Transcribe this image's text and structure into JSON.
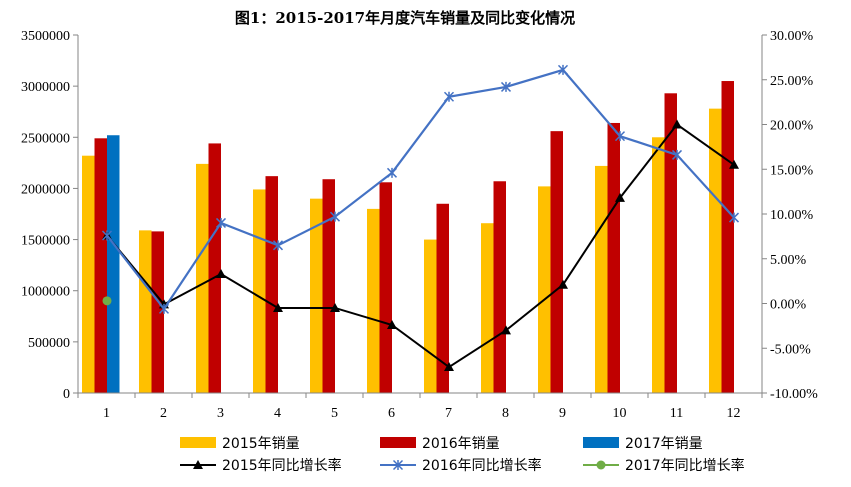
{
  "chart_data": {
    "type": "bar",
    "title": "图1：2015-2017年月度汽车销量及同比变化情况",
    "categories": [
      "1",
      "2",
      "3",
      "4",
      "5",
      "6",
      "7",
      "8",
      "9",
      "10",
      "11",
      "12"
    ],
    "ylim": [
      0,
      3500000
    ],
    "y_ticks": [
      "3500000",
      "3000000",
      "2500000",
      "2000000",
      "1500000",
      "1000000",
      "500000",
      "0"
    ],
    "y2lim": [
      -10,
      30
    ],
    "y2_ticks": [
      "30.00%",
      "25.00%",
      "20.00%",
      "15.00%",
      "10.00%",
      "5.00%",
      "0.00%",
      "-5.00%",
      "-10.00%"
    ],
    "grid": false,
    "legend_position": "bottom",
    "bar_series": [
      {
        "name": "2015年销量",
        "color": "#FFC000",
        "values": [
          2320000,
          1590000,
          2240000,
          1990000,
          1900000,
          1800000,
          1500000,
          1660000,
          2020000,
          2220000,
          2500000,
          2780000
        ]
      },
      {
        "name": "2016年销量",
        "color": "#C00000",
        "values": [
          2490000,
          1580000,
          2440000,
          2120000,
          2090000,
          2060000,
          1850000,
          2070000,
          2560000,
          2640000,
          2930000,
          3050000
        ]
      },
      {
        "name": "2017年销量",
        "color": "#0070C0",
        "values": [
          2520000,
          null,
          null,
          null,
          null,
          null,
          null,
          null,
          null,
          null,
          null,
          null
        ]
      }
    ],
    "line_series": [
      {
        "name": "2015年同比增长率",
        "color": "#000000",
        "marker": "triangle",
        "values": [
          7.6,
          -0.1,
          3.3,
          -0.5,
          -0.5,
          -2.4,
          -7.1,
          -3.0,
          2.1,
          11.8,
          20.0,
          15.5
        ]
      },
      {
        "name": "2016年同比增长率",
        "color": "#4472C4",
        "marker": "star",
        "values": [
          7.6,
          -0.6,
          9.0,
          6.5,
          9.7,
          14.6,
          23.1,
          24.2,
          26.1,
          18.7,
          16.6,
          9.6
        ]
      },
      {
        "name": "2017年同比增长率",
        "color": "#70AD47",
        "marker": "circle",
        "values": [
          0.3,
          null,
          null,
          null,
          null,
          null,
          null,
          null,
          null,
          null,
          null,
          null
        ]
      }
    ]
  }
}
